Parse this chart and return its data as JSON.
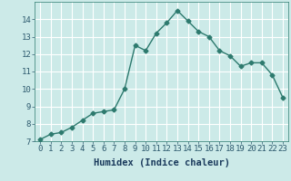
{
  "x": [
    0,
    1,
    2,
    3,
    4,
    5,
    6,
    7,
    8,
    9,
    10,
    11,
    12,
    13,
    14,
    15,
    16,
    17,
    18,
    19,
    20,
    21,
    22,
    23
  ],
  "y": [
    7.1,
    7.4,
    7.5,
    7.8,
    8.2,
    8.6,
    8.7,
    8.8,
    10.0,
    12.5,
    12.2,
    13.2,
    13.8,
    14.5,
    13.9,
    13.3,
    13.0,
    12.2,
    11.9,
    11.3,
    11.5,
    11.5,
    10.8,
    9.5
  ],
  "xlabel": "Humidex (Indice chaleur)",
  "ylim": [
    7,
    15
  ],
  "xlim": [
    -0.5,
    23.5
  ],
  "yticks": [
    7,
    8,
    9,
    10,
    11,
    12,
    13,
    14
  ],
  "xticks": [
    0,
    1,
    2,
    3,
    4,
    5,
    6,
    7,
    8,
    9,
    10,
    11,
    12,
    13,
    14,
    15,
    16,
    17,
    18,
    19,
    20,
    21,
    22,
    23
  ],
  "line_color": "#2d7a6e",
  "marker": "D",
  "marker_size": 2.5,
  "bg_color": "#cceae8",
  "grid_color": "#ffffff",
  "tick_color": "#2d5a6e",
  "xlabel_color": "#1a3a5c",
  "tick_label_fontsize": 6.5,
  "xlabel_fontsize": 7.5,
  "line_width": 1.0
}
